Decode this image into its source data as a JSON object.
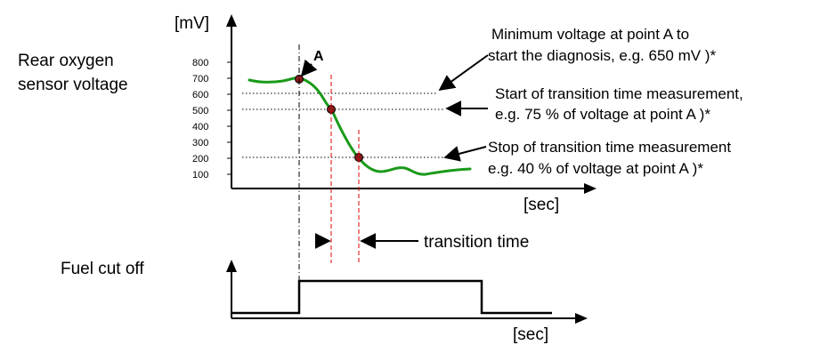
{
  "top_chart": {
    "y_axis_label": "Rear oxygen\nsensor voltage",
    "y_unit": "[mV]",
    "x_unit": "[sec]",
    "y_ticks": [
      "800",
      "700",
      "600",
      "500",
      "400",
      "300",
      "200",
      "100"
    ],
    "point_a_label": "A",
    "annotations": [
      {
        "line1": "Minimum voltage at point A to",
        "line2": "start the diagnosis, e.g. 650 mV )*"
      },
      {
        "line1": "Start of transition time measurement,",
        "line2": "e.g. 75 % of voltage at point A )*"
      },
      {
        "line1": "Stop of transition time measurement",
        "line2": "e.g. 40 % of voltage at point A )*"
      }
    ],
    "transition_label": "transition time",
    "colors": {
      "curve": "#1a9a1a",
      "markers": "#e00000",
      "axes": "#000000"
    }
  },
  "bottom_chart": {
    "y_axis_label": "Fuel cut off",
    "x_unit": "[sec]"
  }
}
